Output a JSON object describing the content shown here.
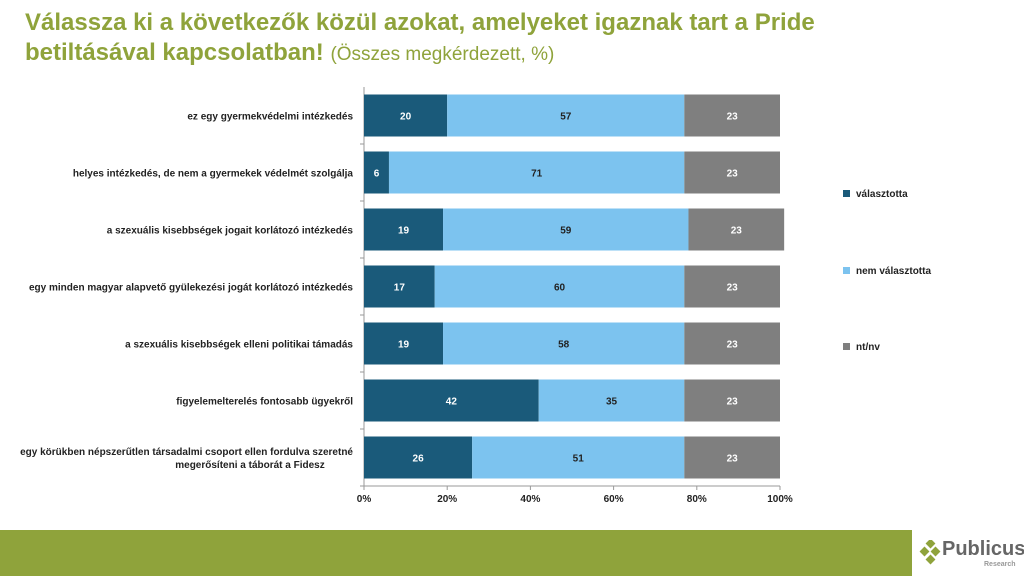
{
  "title": "Válassza ki a következők közül azokat, amelyeket igaznak tart a Pride betiltásával kapcsolatban!",
  "subtitle": "(Összes megkérdezett, %)",
  "chart_data": {
    "type": "bar",
    "orientation": "horizontal-stacked-100",
    "categories": [
      "ez egy gyermekvédelmi intézkedés",
      "helyes intézkedés, de nem a gyermekek védelmét szolgálja",
      "a szexuális kisebbségek jogait korlátozó intézkedés",
      "egy minden magyar alapvető gyülekezési jogát korlátozó intézkedés",
      "a szexuális kisebbségek elleni politikai támadás",
      "figyelemelterelés fontosabb ügyekről",
      "egy körükben népszerűtlen társadalmi csoport ellen fordulva szeretné|megerősíteni a táborát a Fidesz"
    ],
    "series": [
      {
        "name": "választotta",
        "color": "#1a5a7a",
        "values": [
          20,
          6,
          19,
          17,
          19,
          42,
          26
        ]
      },
      {
        "name": "nem választotta",
        "color": "#7cc3ef",
        "values": [
          57,
          71,
          59,
          60,
          58,
          35,
          51
        ]
      },
      {
        "name": "nt/nv",
        "color": "#7f7f7f",
        "values": [
          23,
          23,
          23,
          23,
          23,
          23,
          23
        ]
      }
    ],
    "xticks": [
      "0%",
      "20%",
      "40%",
      "60%",
      "80%",
      "100%"
    ],
    "xlim": [
      0,
      100
    ],
    "legend": "right"
  },
  "logo": {
    "name": "Publicus",
    "sub": "Research"
  }
}
